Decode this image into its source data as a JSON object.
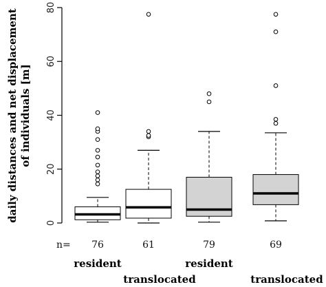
{
  "chart_data": {
    "type": "boxplot",
    "ylabel_lines": [
      "daily distances and net displacement",
      "of individuals [m]"
    ],
    "ylim": [
      0,
      80
    ],
    "yticks": [
      0,
      20,
      40,
      60,
      80
    ],
    "n_prefix": "n=",
    "boxes": [
      {
        "n": "76",
        "label_top": "resident",
        "label_bottom": "",
        "fill": "#ffffff",
        "whisker_low": 0.3,
        "q1": 1.2,
        "median": 3.2,
        "q3": 6.0,
        "whisker_high": 9.5,
        "outliers": [
          14.5,
          16.0,
          17.5,
          19.0,
          21.5,
          24.5,
          27.0,
          31.0,
          34.0,
          35.0,
          41.0
        ]
      },
      {
        "n": "61",
        "label_top": "",
        "label_bottom": "translocated",
        "fill": "#ffffff",
        "whisker_low": 0.0,
        "q1": 1.8,
        "median": 5.8,
        "q3": 12.5,
        "whisker_high": 27.0,
        "outliers": [
          32.0,
          32.5,
          34.0,
          77.5
        ]
      },
      {
        "n": "79",
        "label_top": "resident",
        "label_bottom": "",
        "fill": "#d3d3d3",
        "whisker_low": 0.3,
        "q1": 2.5,
        "median": 5.0,
        "q3": 17.0,
        "whisker_high": 34.0,
        "outliers": [
          45.0,
          48.0
        ]
      },
      {
        "n": "69",
        "label_top": "",
        "label_bottom": "translocated",
        "fill": "#d3d3d3",
        "whisker_low": 0.8,
        "q1": 6.8,
        "median": 11.0,
        "q3": 18.0,
        "whisker_high": 33.5,
        "outliers": [
          37.0,
          38.5,
          51.0,
          71.0,
          77.5
        ]
      }
    ],
    "grid": false,
    "legend": "none"
  }
}
